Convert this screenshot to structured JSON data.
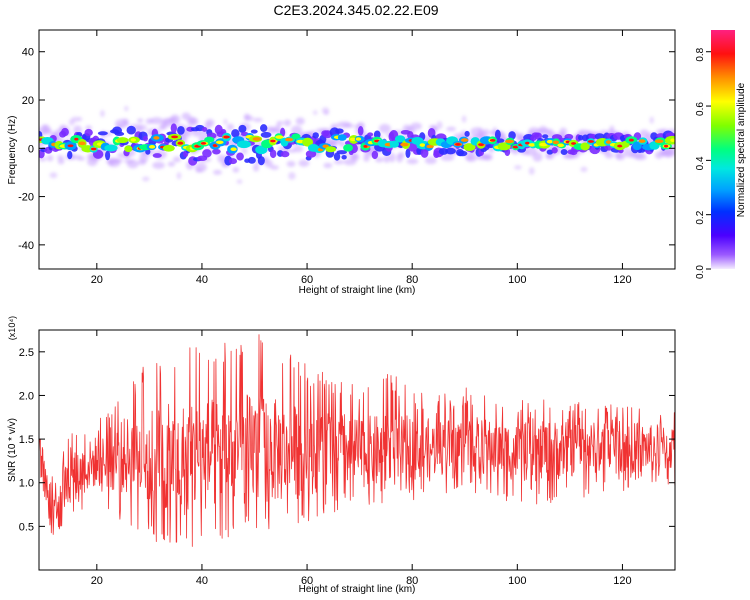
{
  "title": "C2E3.2024.345.02.22.E09",
  "colors": {
    "snr_line": "#f03232",
    "colormap": [
      "#c9a3ff",
      "#7a2bff",
      "#2c2cff",
      "#00a0ff",
      "#00e0e0",
      "#00ff80",
      "#a0ff00",
      "#ffff00",
      "#ff9000",
      "#ff1010",
      "#ff2080"
    ]
  },
  "chart_data": [
    {
      "type": "heatmap",
      "xlabel": "Height of straight line (km)",
      "ylabel": "Frequency (Hz)",
      "xlim": [
        9,
        130
      ],
      "ylim": [
        -50,
        49
      ],
      "xticks": [
        20,
        40,
        60,
        80,
        100,
        120
      ],
      "yticks": [
        -40,
        -20,
        0,
        20,
        40
      ],
      "colorbar": {
        "label": "Normalized spectral amplitude",
        "range": [
          0.0,
          0.88
        ],
        "ticks": [
          "0.0",
          "0.2",
          "0.4",
          "0.6",
          "0.8"
        ],
        "tick_values": [
          0.0,
          0.2,
          0.4,
          0.6,
          0.8
        ]
      },
      "band": {
        "center_hz": 2,
        "halfwidth_hz": [
          [
            9,
            5
          ],
          [
            30,
            7
          ],
          [
            40,
            9
          ],
          [
            55,
            8
          ],
          [
            70,
            6
          ],
          [
            84,
            5
          ],
          [
            100,
            4
          ],
          [
            130,
            4
          ]
        ]
      },
      "grid": false
    },
    {
      "type": "line",
      "xlabel": "Height of straight line (km)",
      "ylabel": "SNR (10 * v/v)",
      "multiplier": "(x10⁴)",
      "xlim": [
        9,
        130
      ],
      "ylim": [
        0.0,
        2.75
      ],
      "xticks": [
        20,
        40,
        60,
        80,
        100,
        120
      ],
      "yticks": [
        0.5,
        1.0,
        1.5,
        2.0,
        2.5
      ],
      "envelope": {
        "x": [
          9,
          11,
          15,
          20,
          25,
          30,
          35,
          40,
          45,
          50,
          55,
          60,
          65,
          70,
          75,
          80,
          85,
          90,
          95,
          100,
          105,
          110,
          115,
          120,
          125,
          130
        ],
        "low": [
          1.0,
          0.3,
          0.6,
          0.75,
          0.55,
          0.35,
          0.2,
          0.3,
          0.35,
          0.45,
          0.45,
          0.55,
          0.65,
          0.75,
          0.75,
          0.8,
          0.85,
          0.9,
          0.85,
          0.75,
          0.75,
          0.8,
          0.85,
          0.85,
          0.9,
          0.95
        ],
        "high": [
          1.8,
          1.1,
          1.6,
          1.8,
          2.1,
          2.4,
          2.55,
          2.65,
          2.6,
          2.75,
          2.55,
          2.35,
          2.25,
          2.2,
          2.3,
          2.1,
          2.0,
          2.1,
          2.0,
          1.95,
          2.0,
          2.0,
          1.9,
          1.9,
          1.9,
          1.9
        ],
        "mid": [
          1.4,
          0.7,
          1.05,
          1.25,
          1.3,
          1.3,
          1.25,
          1.3,
          1.35,
          1.4,
          1.35,
          1.35,
          1.4,
          1.35,
          1.35,
          1.4,
          1.4,
          1.45,
          1.4,
          1.35,
          1.35,
          1.4,
          1.4,
          1.4,
          1.4,
          1.4
        ]
      },
      "grid": false
    }
  ]
}
